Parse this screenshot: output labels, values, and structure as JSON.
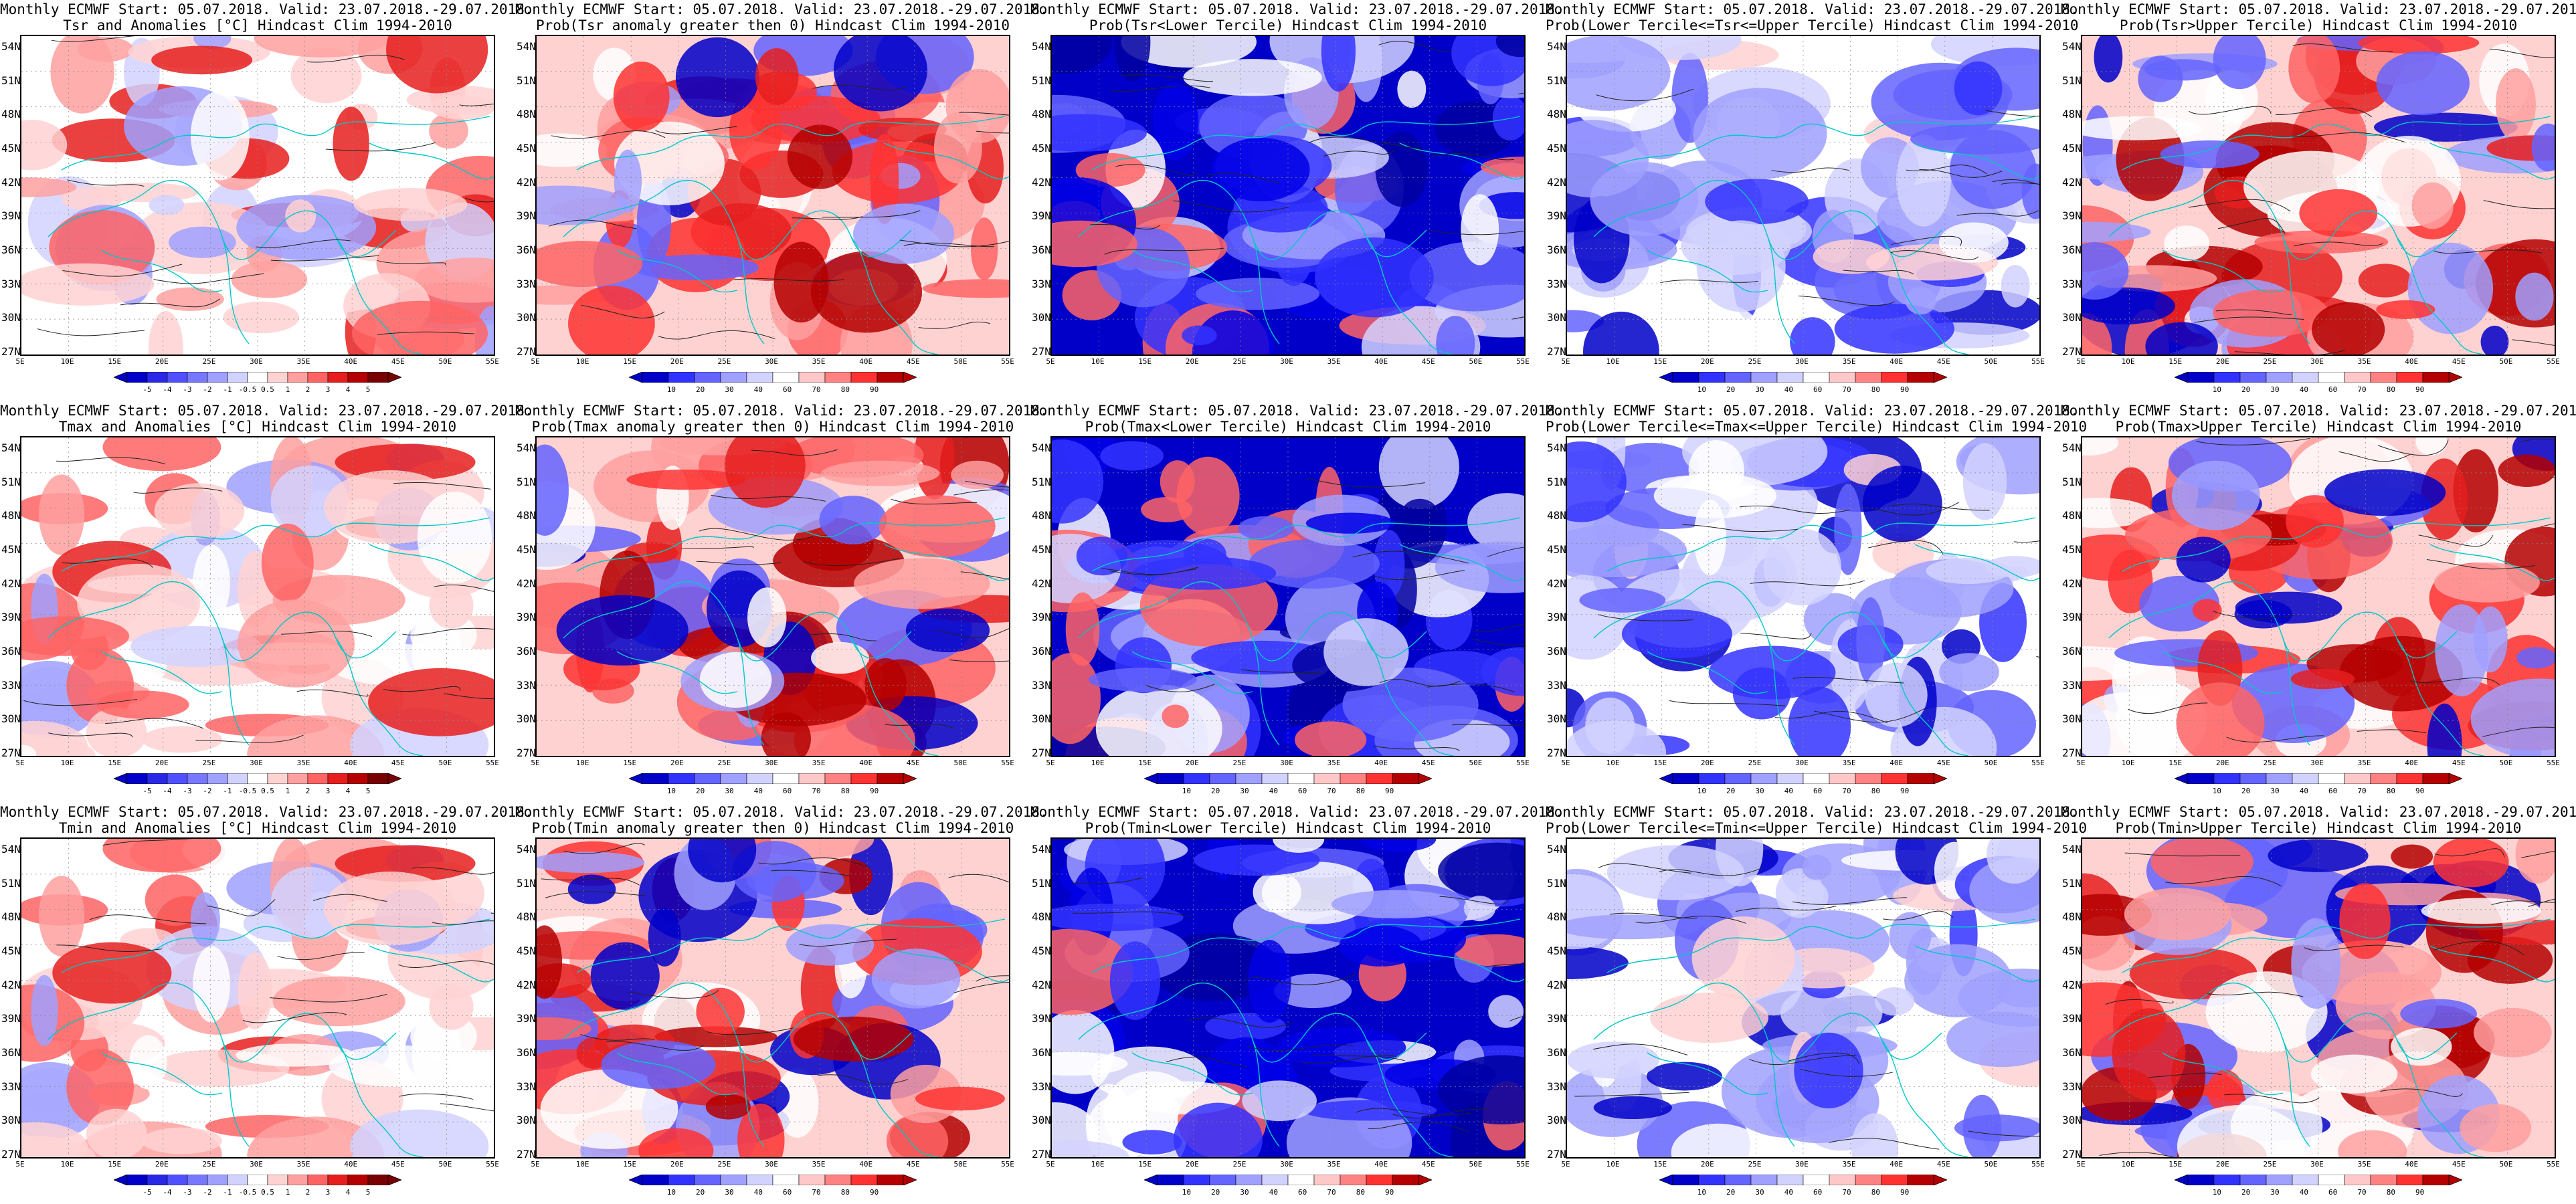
{
  "common_title": "Monthly ECMWF Start: 05.07.2018. Valid: 23.07.2018.-29.07.2018.",
  "lat_ticks": [
    "54N",
    "51N",
    "48N",
    "45N",
    "42N",
    "39N",
    "36N",
    "33N",
    "30N",
    "27N"
  ],
  "lon_ticks": [
    "5E",
    "10E",
    "15E",
    "20E",
    "25E",
    "30E",
    "35E",
    "40E",
    "45E",
    "50E",
    "55E"
  ],
  "colorbars": {
    "anomaly": {
      "labels": [
        "-5",
        "-4",
        "-3",
        "-2",
        "-1",
        "-0.5",
        "0.5",
        "1",
        "2",
        "3",
        "4",
        "5"
      ],
      "colors": [
        "#0000c8",
        "#2828e6",
        "#5050ff",
        "#7878ff",
        "#a0a0ff",
        "#d2d2ff",
        "#ffffff",
        "#ffd2d2",
        "#ffa0a0",
        "#ff6464",
        "#e61e1e",
        "#b40000",
        "#780000"
      ]
    },
    "probability": {
      "labels": [
        "10",
        "20",
        "30",
        "40",
        "60",
        "70",
        "80",
        "90"
      ],
      "colors": [
        "#0000c8",
        "#3232ff",
        "#6464ff",
        "#a0a0ff",
        "#d2d2ff",
        "#ffffff",
        "#ffc8c8",
        "#ff8282",
        "#ff3232",
        "#b40000"
      ]
    }
  },
  "panels": [
    {
      "subtitle": "Tsr and Anomalies [°C] Hindcast Clim 1994-2010",
      "cbar": "anomaly",
      "style": "anom"
    },
    {
      "subtitle": "Prob(Tsr anomaly greater then 0) Hindcast Clim 1994-2010",
      "cbar": "probability",
      "style": "warm"
    },
    {
      "subtitle": "Prob(Tsr<Lower Tercile) Hindcast Clim 1994-2010",
      "cbar": "",
      "style": "cold"
    },
    {
      "subtitle": "Prob(Lower Tercile<=Tsr<=Upper Tercile) Hindcast Clim 1994-2010",
      "cbar": "probability",
      "style": "mid"
    },
    {
      "subtitle": "Prob(Tsr>Upper Tercile) Hindcast Clim 1994-2010",
      "cbar": "probability",
      "style": "warm"
    },
    {
      "subtitle": "Tmax and Anomalies [°C] Hindcast Clim 1994-2010",
      "cbar": "anomaly",
      "style": "anom"
    },
    {
      "subtitle": "Prob(Tmax anomaly greater then 0) Hindcast Clim 1994-2010",
      "cbar": "probability",
      "style": "warm"
    },
    {
      "subtitle": "Prob(Tmax<Lower Tercile) Hindcast Clim 1994-2010",
      "cbar": "probability",
      "style": "cold"
    },
    {
      "subtitle": "Prob(Lower Tercile<=Tmax<=Upper Tercile) Hindcast Clim 1994-2010",
      "cbar": "probability",
      "style": "mid"
    },
    {
      "subtitle": "Prob(Tmax>Upper Tercile) Hindcast Clim 1994-2010",
      "cbar": "probability",
      "style": "warm"
    },
    {
      "subtitle": "Tmin and Anomalies [°C] Hindcast Clim 1994-2010",
      "cbar": "anomaly",
      "style": "anom"
    },
    {
      "subtitle": "Prob(Tmin anomaly greater then 0) Hindcast Clim 1994-2010",
      "cbar": "probability",
      "style": "warm"
    },
    {
      "subtitle": "Prob(Tmin<Lower Tercile) Hindcast Clim 1994-2010",
      "cbar": "probability",
      "style": "cold"
    },
    {
      "subtitle": "Prob(Lower Tercile<=Tmin<=Upper Tercile) Hindcast Clim 1994-2010",
      "cbar": "probability",
      "style": "mid"
    },
    {
      "subtitle": "Prob(Tmin>Upper Tercile) Hindcast Clim 1994-2010",
      "cbar": "probability",
      "style": "warm"
    }
  ]
}
